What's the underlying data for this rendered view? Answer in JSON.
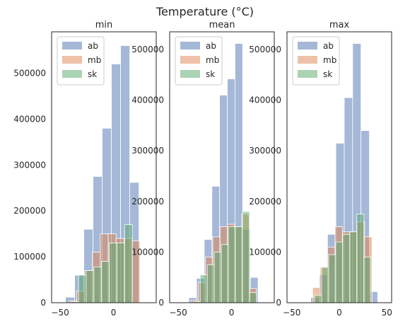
{
  "figure": {
    "title": "Temperature (°C)"
  },
  "colors": {
    "ab": "#4c72b0",
    "mb": "#dd8452",
    "sk": "#55a868",
    "axes": "#262626"
  },
  "chart_data": [
    {
      "type": "bar",
      "title": "min",
      "xlim": [
        -58,
        40
      ],
      "ylim": [
        0,
        590000
      ],
      "xticks": [
        -50,
        0
      ],
      "yticks": [
        0,
        100000,
        200000,
        300000,
        400000,
        500000
      ],
      "legend": "top-left",
      "series": [
        {
          "name": "ab",
          "bins": [
            [
              -45,
              -36.4,
              12000
            ],
            [
              -36.4,
              -27.8,
              60000
            ],
            [
              -27.8,
              -19.2,
              160000
            ],
            [
              -19.2,
              -10.6,
              275000
            ],
            [
              -10.6,
              -2,
              380000
            ],
            [
              -2,
              6.6,
              520000
            ],
            [
              6.6,
              15.2,
              560000
            ],
            [
              15.2,
              23.8,
              262000
            ]
          ]
        },
        {
          "name": "mb",
          "bins": [
            [
              -42,
              -34.6,
              4000
            ],
            [
              -34.6,
              -27.2,
              25000
            ],
            [
              -27.2,
              -19.8,
              70000
            ],
            [
              -19.8,
              -12.4,
              110000
            ],
            [
              -12.4,
              -5,
              150000
            ],
            [
              -5,
              2.4,
              150000
            ],
            [
              2.4,
              9.8,
              140000
            ],
            [
              9.8,
              17.2,
              140000
            ],
            [
              17.2,
              24.6,
              135000
            ]
          ]
        },
        {
          "name": "sk",
          "bins": [
            [
              -40,
              -32.8,
              2000
            ],
            [
              -32.8,
              -25.6,
              60000
            ],
            [
              -25.6,
              -18.4,
              70000
            ],
            [
              -18.4,
              -11.2,
              78000
            ],
            [
              -11.2,
              -4,
              90000
            ],
            [
              -4,
              3.2,
              130000
            ],
            [
              3.2,
              10.4,
              130000
            ],
            [
              10.4,
              17.6,
              170000
            ]
          ]
        }
      ]
    },
    {
      "type": "bar",
      "title": "mean",
      "xlim": [
        -58,
        40
      ],
      "ylim": [
        0,
        535000
      ],
      "xticks": [
        -50,
        0
      ],
      "yticks": [
        0,
        100000,
        200000,
        300000,
        400000,
        500000
      ],
      "legend": "top-left",
      "series": [
        {
          "name": "ab",
          "bins": [
            [
              -40,
              -32.8,
              10000
            ],
            [
              -32.8,
              -25.6,
              48000
            ],
            [
              -25.6,
              -18.4,
              125000
            ],
            [
              -18.4,
              -11.2,
              230000
            ],
            [
              -11.2,
              -4,
              410000
            ],
            [
              -4,
              3.2,
              442000
            ],
            [
              3.2,
              10.4,
              512000
            ],
            [
              10.4,
              17.6,
              145000
            ],
            [
              17.6,
              24.8,
              50000
            ]
          ]
        },
        {
          "name": "mb",
          "bins": [
            [
              -38,
              -31.2,
              5000
            ],
            [
              -31.2,
              -24.4,
              40000
            ],
            [
              -24.4,
              -17.6,
              90000
            ],
            [
              -17.6,
              -10.8,
              130000
            ],
            [
              -10.8,
              -4,
              150000
            ],
            [
              -4,
              2.8,
              155000
            ],
            [
              2.8,
              9.6,
              150000
            ],
            [
              9.6,
              16.4,
              175000
            ],
            [
              16.4,
              23.2,
              28000
            ]
          ]
        },
        {
          "name": "sk",
          "bins": [
            [
              -36,
              -29.4,
              2000
            ],
            [
              -29.4,
              -22.8,
              55000
            ],
            [
              -22.8,
              -16.2,
              75000
            ],
            [
              -16.2,
              -9.6,
              100000
            ],
            [
              -9.6,
              -3,
              115000
            ],
            [
              -3,
              3.6,
              150000
            ],
            [
              3.6,
              10.2,
              150000
            ],
            [
              10.2,
              16.8,
              180000
            ],
            [
              16.8,
              23.4,
              20000
            ]
          ]
        }
      ]
    },
    {
      "type": "bar",
      "title": "max",
      "xlim": [
        -55,
        55
      ],
      "ylim": [
        0,
        535000
      ],
      "xticks": [
        -50,
        0,
        50
      ],
      "yticks": [
        0,
        100000,
        200000,
        300000,
        400000,
        500000
      ],
      "legend": "top-left",
      "series": [
        {
          "name": "ab",
          "bins": [
            [
              -30,
              -21.2,
              10000
            ],
            [
              -21.2,
              -12.4,
              55000
            ],
            [
              -12.4,
              -3.6,
              135000
            ],
            [
              -3.6,
              5.2,
              315000
            ],
            [
              5.2,
              14,
              405000
            ],
            [
              14,
              22.8,
              512000
            ],
            [
              22.8,
              31.6,
              340000
            ],
            [
              31.6,
              40.4,
              22000
            ]
          ]
        },
        {
          "name": "mb",
          "bins": [
            [
              -28,
              -20.2,
              30000
            ],
            [
              -20.2,
              -12.4,
              70000
            ],
            [
              -12.4,
              -4.6,
              110000
            ],
            [
              -4.6,
              3.2,
              150000
            ],
            [
              3.2,
              11,
              140000
            ],
            [
              11,
              18.8,
              140000
            ],
            [
              18.8,
              26.6,
              160000
            ],
            [
              26.6,
              34.4,
              130000
            ]
          ]
        },
        {
          "name": "sk",
          "bins": [
            [
              -26,
              -18.6,
              15000
            ],
            [
              -18.6,
              -11.2,
              70000
            ],
            [
              -11.2,
              -3.8,
              95000
            ],
            [
              -3.8,
              3.6,
              120000
            ],
            [
              3.6,
              11,
              135000
            ],
            [
              11,
              18.4,
              140000
            ],
            [
              18.4,
              25.8,
              175000
            ],
            [
              25.8,
              33.2,
              90000
            ]
          ]
        }
      ]
    }
  ]
}
